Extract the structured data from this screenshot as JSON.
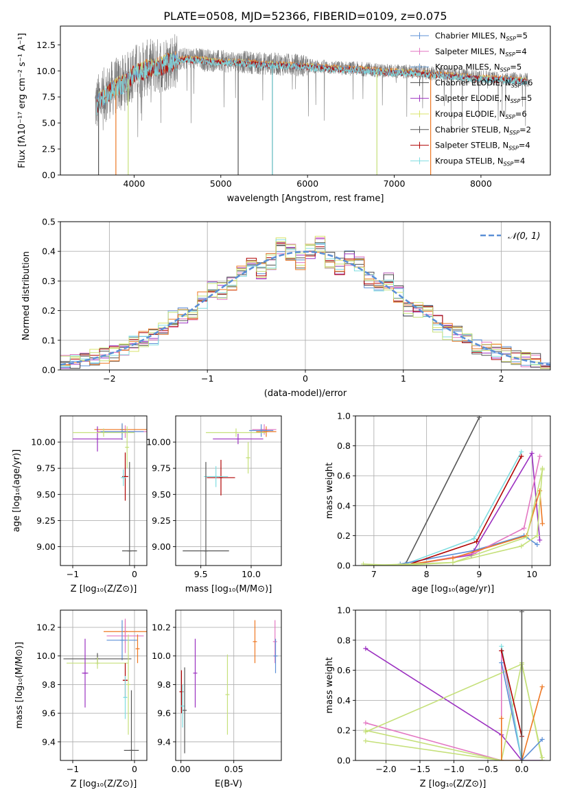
{
  "figure": {
    "title": "PLATE=0508, MJD=52366, FIBERID=0109, z=0.075"
  },
  "colors": {
    "chabrier_miles": "#5b8fd6",
    "salpeter_miles": "#e377c2",
    "kroupa_miles": "#6699cc",
    "chabrier_elodie": "#4a4a4a",
    "salpeter_elodie": "#9b30c0",
    "kroupa_elodie": "#d8e36a",
    "chabrier_stelib": "#555555",
    "salpeter_stelib": "#b00000",
    "kroupa_stelib": "#7fdde0",
    "orange": "#ee7722",
    "lime": "#c5e07a",
    "grid": "#b0b0b0"
  },
  "chart_data": [
    {
      "id": "spectrum",
      "type": "line",
      "title": "PLATE=0508, MJD=52366, FIBERID=0109, z=0.075",
      "xlabel": "wavelength [Angstrom, rest frame]",
      "ylabel": "Flux [fλ10⁻¹⁷ erg cm⁻² s⁻¹ A⁻¹]",
      "xlim": [
        3150,
        8800
      ],
      "ylim": [
        0,
        14.3
      ],
      "xticks": [
        "4000",
        "5000",
        "6000",
        "7000",
        "8000"
      ],
      "xtick_values": [
        4000,
        5000,
        6000,
        7000,
        8000
      ],
      "yticks": [
        "0.0",
        "2.5",
        "5.0",
        "7.5",
        "10.0",
        "12.5"
      ],
      "ytick_values": [
        0,
        2.5,
        5,
        7.5,
        10,
        12.5
      ],
      "grid": false,
      "legend_position": "top-right",
      "legend": [
        {
          "name": "Chabrier MILES, N",
          "sub": "SSP",
          "tail": "=5",
          "color": "#5b8fd6"
        },
        {
          "name": "Salpeter MILES, N",
          "sub": "SSP",
          "tail": "=4",
          "color": "#e377c2"
        },
        {
          "name": "Kroupa MILES, N",
          "sub": "SSP",
          "tail": "=5",
          "color": "#6699cc"
        },
        {
          "name": "Chabrier ELODIE, N",
          "sub": "SSP",
          "tail": "=6",
          "color": "#4a4a4a"
        },
        {
          "name": "Salpeter ELODIE, N",
          "sub": "SSP",
          "tail": "=5",
          "color": "#9b30c0"
        },
        {
          "name": "Kroupa ELODIE, N",
          "sub": "SSP",
          "tail": "=6",
          "color": "#d8e36a"
        },
        {
          "name": "Chabrier STELIB, N",
          "sub": "SSP",
          "tail": "=2",
          "color": "#555555"
        },
        {
          "name": "Salpeter STELIB, N",
          "sub": "SSP",
          "tail": "=4",
          "color": "#b00000"
        },
        {
          "name": "Kroupa STELIB, N",
          "sub": "SSP",
          "tail": "=4",
          "color": "#7fdde0"
        }
      ],
      "continuum": {
        "x": [
          3550,
          3600,
          3700,
          3800,
          3900,
          4000,
          4100,
          4200,
          4300,
          4400,
          4600,
          4800,
          5000,
          5200,
          5500,
          5800,
          6000,
          6300,
          6600,
          6900,
          7200,
          7500,
          7800,
          8100,
          8400,
          8500
        ],
        "y": [
          6.6,
          7.2,
          8.0,
          8.6,
          8.9,
          9.9,
          10.1,
          10.4,
          10.5,
          10.9,
          11.2,
          11.1,
          10.9,
          10.9,
          10.7,
          10.6,
          10.5,
          10.3,
          10.2,
          10.0,
          9.9,
          9.7,
          9.5,
          9.3,
          9.2,
          9.1
        ]
      },
      "observed_range": [
        3550,
        8550
      ],
      "dips": [
        {
          "x": 3590,
          "y": 0.0,
          "color": "#555555"
        },
        {
          "x": 3790,
          "y": 0.0,
          "color": "#ee7722"
        },
        {
          "x": 3932,
          "y": 0.0,
          "color": "#c5e07a"
        },
        {
          "x": 5200,
          "y": 0.0,
          "color": "#555555"
        },
        {
          "x": 5595,
          "y": 0.0,
          "color": "#5fb8be"
        },
        {
          "x": 6800,
          "y": 0.0,
          "color": "#c5e07a"
        },
        {
          "x": 7420,
          "y": 0.0,
          "color": "#ee7722"
        }
      ]
    },
    {
      "id": "residuals",
      "type": "histogram",
      "xlabel": "(data-model)/error",
      "ylabel": "Normed distribution",
      "xlim": [
        -2.5,
        2.5
      ],
      "ylim": [
        0,
        0.5
      ],
      "xticks": [
        "−2",
        "−1",
        "0",
        "1",
        "2"
      ],
      "xtick_values": [
        -2,
        -1,
        0,
        1,
        2
      ],
      "yticks": [
        "0.0",
        "0.1",
        "0.2",
        "0.3",
        "0.4",
        "0.5"
      ],
      "ytick_values": [
        0,
        0.1,
        0.2,
        0.3,
        0.4,
        0.5
      ],
      "grid": true,
      "legend_position": "top-right",
      "legend": [
        {
          "name": "𝒩(0, 1)",
          "color": "#5b8fd6",
          "style": "dashed"
        }
      ],
      "bin_width": 0.1,
      "bin_start": -2.5,
      "reference_curve": "N(0,1)"
    },
    {
      "id": "age_vs_Z",
      "type": "errorbar",
      "xlabel": "Z [log₁₀(Z/Z⊙)]",
      "ylabel": "age  [log₁₀(age/yr)]",
      "xlim": [
        -1.2,
        0.2
      ],
      "ylim": [
        8.82,
        10.25
      ],
      "xticks": [
        "−1",
        "0"
      ],
      "xtick_values": [
        -1,
        0
      ],
      "yticks": [
        "9.00",
        "9.25",
        "9.50",
        "9.75",
        "10.00"
      ],
      "ytick_values": [
        9.0,
        9.25,
        9.5,
        9.75,
        10.0
      ],
      "grid": true,
      "points": [
        {
          "x": -0.15,
          "y": 10.1,
          "xerr": 0.45,
          "yerr": 0.06,
          "color": "#e377c2"
        },
        {
          "x": -0.2,
          "y": 10.12,
          "xerr": 0.45,
          "yerr": 0.05,
          "color": "#ee7722"
        },
        {
          "x": -0.2,
          "y": 10.1,
          "xerr": 0.35,
          "yerr": 0.08,
          "color": "#5b8fd6"
        },
        {
          "x": -0.6,
          "y": 10.03,
          "xerr": 0.4,
          "yerr": 0.12,
          "color": "#9b30c0"
        },
        {
          "x": -0.5,
          "y": 10.09,
          "xerr": 0.5,
          "yerr": 0.04,
          "color": "#c5e07a"
        },
        {
          "x": -0.15,
          "y": 9.67,
          "xerr": 0.05,
          "yerr": 0.23,
          "color": "#b00000"
        },
        {
          "x": -0.18,
          "y": 9.66,
          "xerr": 0.04,
          "yerr": 0.08,
          "color": "#7fdde0"
        },
        {
          "x": -0.12,
          "y": 9.95,
          "xerr": 0.02,
          "yerr": 0.2,
          "color": "#c5e07a"
        },
        {
          "x": -0.08,
          "y": 8.96,
          "xerr": 0.12,
          "yerr": 0.85,
          "color": "#555555"
        }
      ]
    },
    {
      "id": "age_vs_mass",
      "type": "errorbar",
      "xlabel": "mass [log₁₀(M/M⊙)]",
      "ylabel": "",
      "xlim": [
        9.25,
        10.3
      ],
      "ylim": [
        8.82,
        10.25
      ],
      "xticks": [
        "9.5",
        "10.0"
      ],
      "xtick_values": [
        9.5,
        10.0
      ],
      "yticks": [
        "9.00",
        "9.25",
        "9.50",
        "9.75",
        "10.00"
      ],
      "ytick_values": [
        9.0,
        9.25,
        9.5,
        9.75,
        10.0
      ],
      "grid": true,
      "points": [
        {
          "x": 10.13,
          "y": 10.12,
          "xerr": 0.12,
          "yerr": 0.05,
          "color": "#e377c2"
        },
        {
          "x": 10.15,
          "y": 10.1,
          "xerr": 0.1,
          "yerr": 0.05,
          "color": "#ee7722"
        },
        {
          "x": 10.1,
          "y": 10.11,
          "xerr": 0.12,
          "yerr": 0.06,
          "color": "#5b8fd6"
        },
        {
          "x": 9.85,
          "y": 10.09,
          "xerr": 0.3,
          "yerr": 0.04,
          "color": "#c5e07a"
        },
        {
          "x": 9.87,
          "y": 10.03,
          "xerr": 0.25,
          "yerr": 0.05,
          "color": "#9b30c0"
        },
        {
          "x": 9.7,
          "y": 9.66,
          "xerr": 0.14,
          "yerr": 0.17,
          "color": "#b00000"
        },
        {
          "x": 9.65,
          "y": 9.67,
          "xerr": 0.12,
          "yerr": 0.1,
          "color": "#7fdde0"
        },
        {
          "x": 9.97,
          "y": 9.85,
          "xerr": 0.02,
          "yerr": 0.15,
          "color": "#c5e07a"
        },
        {
          "x": 9.55,
          "y": 8.96,
          "xerr": 0.23,
          "yerr": 0.85,
          "color": "#555555"
        }
      ]
    },
    {
      "id": "massweight_vs_age",
      "type": "line",
      "xlabel": "age  [log₁₀(age/yr)]",
      "ylabel": "mass weight",
      "xlim": [
        6.65,
        10.35
      ],
      "ylim": [
        0,
        1.0
      ],
      "xticks": [
        "7",
        "8",
        "9",
        "10"
      ],
      "xtick_values": [
        7,
        8,
        9,
        10
      ],
      "yticks": [
        "0.0",
        "0.2",
        "0.4",
        "0.6",
        "0.8",
        "1.0"
      ],
      "ytick_values": [
        0,
        0.2,
        0.4,
        0.6,
        0.8,
        1.0
      ],
      "grid": true,
      "series": [
        {
          "color": "#555555",
          "x": [
            7.6,
            9.0
          ],
          "y": [
            0.01,
            0.99
          ]
        },
        {
          "color": "#7fdde0",
          "x": [
            7.6,
            8.9,
            9.8
          ],
          "y": [
            0.01,
            0.18,
            0.76
          ]
        },
        {
          "color": "#5b8fd6",
          "x": [
            7.5,
            8.9,
            9.85,
            10.1
          ],
          "y": [
            0.01,
            0.1,
            0.2,
            0.14
          ]
        },
        {
          "color": "#b00000",
          "x": [
            7.6,
            8.95,
            9.8
          ],
          "y": [
            0.0,
            0.16,
            0.73
          ]
        },
        {
          "color": "#9b30c0",
          "x": [
            7.6,
            8.85,
            10.0,
            10.15
          ],
          "y": [
            0.0,
            0.07,
            0.75,
            0.17
          ]
        },
        {
          "color": "#e377c2",
          "x": [
            7.6,
            8.9,
            9.85,
            10.15
          ],
          "y": [
            0.0,
            0.08,
            0.25,
            0.73
          ]
        },
        {
          "color": "#ee7722",
          "x": [
            7.5,
            8.5,
            9.9,
            10.15,
            10.2
          ],
          "y": [
            0.0,
            0.05,
            0.2,
            0.5,
            0.28
          ]
        },
        {
          "color": "#c5e07a",
          "x": [
            6.8,
            8.5,
            9.8,
            10.1,
            10.2
          ],
          "y": [
            0.0,
            0.02,
            0.13,
            0.2,
            0.65
          ]
        },
        {
          "color": "#c5e07a",
          "x": [
            6.8,
            7.5,
            8.5,
            9.9,
            10.2
          ],
          "y": [
            0.01,
            0.0,
            0.02,
            0.19,
            0.64
          ]
        }
      ]
    },
    {
      "id": "mass_vs_Z",
      "type": "errorbar",
      "xlabel": "Z [log₁₀(Z/Z⊙)]",
      "ylabel": "mass [log₁₀(M/M⊙)]",
      "xlim": [
        -1.2,
        0.2
      ],
      "ylim": [
        9.27,
        10.32
      ],
      "xticks": [
        "−1",
        "0"
      ],
      "xtick_values": [
        -1,
        0
      ],
      "yticks": [
        "9.4",
        "9.6",
        "9.8",
        "10.0",
        "10.2"
      ],
      "ytick_values": [
        9.4,
        9.6,
        9.8,
        10.0,
        10.2
      ],
      "grid": true,
      "points": [
        {
          "x": -0.15,
          "y": 10.17,
          "xerr": 0.35,
          "yerr": 0.08,
          "color": "#ee7722"
        },
        {
          "x": -0.15,
          "y": 10.14,
          "xerr": 0.3,
          "yerr": 0.12,
          "color": "#e377c2"
        },
        {
          "x": -0.2,
          "y": 10.11,
          "xerr": 0.25,
          "yerr": 0.14,
          "color": "#5b8fd6"
        },
        {
          "x": -0.6,
          "y": 9.98,
          "xerr": 0.55,
          "yerr": 0.04,
          "color": "#555555"
        },
        {
          "x": -0.6,
          "y": 9.95,
          "xerr": 0.5,
          "yerr": 0.04,
          "color": "#c5e07a"
        },
        {
          "x": -0.8,
          "y": 9.88,
          "xerr": 0.05,
          "yerr": 0.24,
          "color": "#9b30c0"
        },
        {
          "x": -0.15,
          "y": 9.83,
          "xerr": 0.04,
          "yerr": 0.12,
          "color": "#b00000"
        },
        {
          "x": -0.15,
          "y": 9.71,
          "xerr": 0.03,
          "yerr": 0.15,
          "color": "#7fdde0"
        },
        {
          "x": -0.1,
          "y": 9.8,
          "xerr": 0.02,
          "yerr": 0.35,
          "color": "#c5e07a"
        },
        {
          "x": -0.05,
          "y": 9.34,
          "xerr": 0.12,
          "yerr": 0.42,
          "color": "#555555"
        },
        {
          "x": 0.05,
          "y": 10.05,
          "xerr": 0.01,
          "yerr": 0.1,
          "color": "#ee7722"
        }
      ]
    },
    {
      "id": "mass_vs_ebv",
      "type": "errorbar",
      "xlabel": "E(B-V)",
      "ylabel": "",
      "xlim": [
        -0.005,
        0.095
      ],
      "ylim": [
        9.27,
        10.32
      ],
      "xticks": [
        "0.00",
        "0.05"
      ],
      "xtick_values": [
        0.0,
        0.05
      ],
      "yticks": [
        "9.4",
        "9.6",
        "9.8",
        "10.0",
        "10.2"
      ],
      "ytick_values": [
        9.4,
        9.6,
        9.8,
        10.0,
        10.2
      ],
      "grid": true,
      "points": [
        {
          "x": 0.0005,
          "y": 9.75,
          "xerr": 0.0,
          "yerr": 0.15,
          "color": "#b00000"
        },
        {
          "x": 0.0015,
          "y": 9.65,
          "xerr": 0.0,
          "yerr": 0.15,
          "color": "#7fdde0"
        },
        {
          "x": 0.0035,
          "y": 9.62,
          "xerr": 0.0,
          "yerr": 0.3,
          "color": "#555555"
        },
        {
          "x": 0.0135,
          "y": 9.88,
          "xerr": 0.0,
          "yerr": 0.24,
          "color": "#9b30c0"
        },
        {
          "x": 0.044,
          "y": 9.73,
          "xerr": 0.0,
          "yerr": 0.28,
          "color": "#c5e07a"
        },
        {
          "x": 0.07,
          "y": 10.1,
          "xerr": 0.0,
          "yerr": 0.15,
          "color": "#ee7722"
        },
        {
          "x": 0.089,
          "y": 10.1,
          "xerr": 0.0,
          "yerr": 0.15,
          "color": "#e377c2"
        },
        {
          "x": 0.0895,
          "y": 10.0,
          "xerr": 0.0,
          "yerr": 0.12,
          "color": "#5b8fd6"
        }
      ]
    },
    {
      "id": "massweight_vs_Z",
      "type": "line",
      "xlabel": "Z [log₁₀(Z/Z⊙)]",
      "ylabel": "mass weight",
      "xlim": [
        -2.45,
        0.42
      ],
      "ylim": [
        0,
        1.0
      ],
      "xticks": [
        "−2.0",
        "−1.5",
        "−1.0",
        "−0.5",
        "0.0"
      ],
      "xtick_values": [
        -2.0,
        -1.5,
        -1.0,
        -0.5,
        0.0
      ],
      "yticks": [
        "0.0",
        "0.2",
        "0.4",
        "0.6",
        "0.8",
        "1.0"
      ],
      "ytick_values": [
        0,
        0.2,
        0.4,
        0.6,
        0.8,
        1.0
      ],
      "grid": true,
      "series": [
        {
          "color": "#9b30c0",
          "x": [
            -2.3,
            -0.3,
            0.0,
            0.3
          ],
          "y": [
            0.745,
            0.17,
            0.0,
            0.0
          ]
        },
        {
          "color": "#e377c2",
          "x": [
            -2.3,
            -0.3,
            -0.3,
            0.0
          ],
          "y": [
            0.25,
            0.0,
            0.73,
            0.0
          ]
        },
        {
          "color": "#c5e07a",
          "x": [
            -2.3,
            -0.3,
            0.0,
            0.3
          ],
          "y": [
            0.2,
            0.0,
            0.65,
            0.0
          ]
        },
        {
          "color": "#c5e07a",
          "x": [
            -2.3,
            -0.3
          ],
          "y": [
            0.13,
            0.0
          ]
        },
        {
          "color": "#c5e07a",
          "x": [
            -2.3,
            0.0,
            0.3
          ],
          "y": [
            0.19,
            0.64,
            0.02
          ]
        },
        {
          "color": "#ee7722",
          "x": [
            -0.3,
            -0.3,
            0.0,
            0.3
          ],
          "y": [
            0.28,
            0.0,
            0.0,
            0.49
          ]
        },
        {
          "color": "#5b8fd6",
          "x": [
            -0.3,
            0.0,
            0.3
          ],
          "y": [
            0.65,
            0.0,
            0.14
          ]
        },
        {
          "color": "#7fdde0",
          "x": [
            -0.3,
            0.0
          ],
          "y": [
            0.76,
            0.0
          ]
        },
        {
          "color": "#b00000",
          "x": [
            -0.3,
            0.0
          ],
          "y": [
            0.73,
            0.16
          ]
        },
        {
          "color": "#555555",
          "x": [
            0.0,
            0.0
          ],
          "y": [
            0.0,
            0.99
          ]
        }
      ]
    }
  ]
}
